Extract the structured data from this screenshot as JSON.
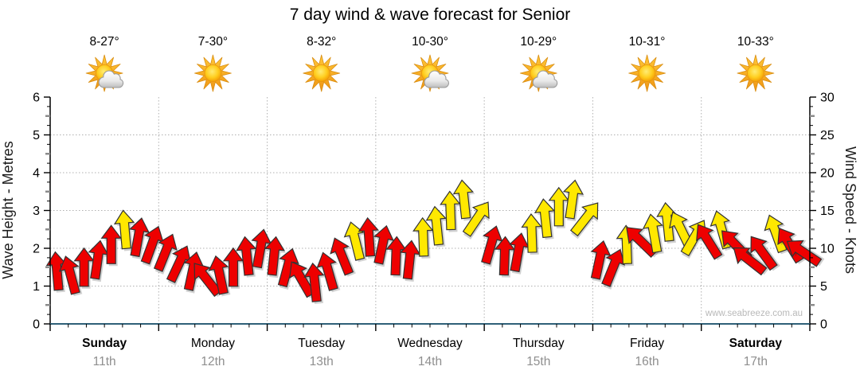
{
  "title": "7 day wind & wave forecast for Senior",
  "watermark": "www.seabreeze.com.au",
  "colors": {
    "arrow_red": "#ee0000",
    "arrow_yellow": "#ffe800",
    "arrow_outline": "#333333",
    "grid": "#b0b0b0",
    "y_axis": "#000000",
    "x_axis": "#2f6078",
    "half_tick": "#8c8c8c",
    "date_text": "#8f8f8f",
    "watermark_text": "#b9b9b9",
    "sun_core": "#ffce1f",
    "sun_rim": "#f29500",
    "ray": "#f6a31c",
    "cloud_light": "#ffffff",
    "cloud_dark": "#bdbdbd"
  },
  "y_left": {
    "label": "Wave Height - Metres",
    "min": 0,
    "max": 6,
    "major_step": 1,
    "ticks": [
      0,
      1,
      2,
      3,
      4,
      5,
      6
    ]
  },
  "y_right": {
    "label": "Wind Speed - Knots",
    "min": 0,
    "max": 30,
    "major_step": 5,
    "ticks": [
      0,
      5,
      10,
      15,
      20,
      25,
      30
    ]
  },
  "chart_data": {
    "type": "scatter",
    "subtype": "wind-arrow-forecast",
    "x_axis": "days (8 arrow samples per day)",
    "y_axis_left": "Wave Height - Metres (0-6)",
    "y_axis_right": "Wind Speed - Knots (0-30)",
    "grid": "dotted, horizontal every 5 knots / 1 metre, vertical at day boundaries",
    "legend": "arrow y-position = wind speed in knots, arrow rotation = wind direction, red = lighter wind, yellow = stronger wind",
    "days": [
      {
        "day": "Sunday",
        "date": "11th",
        "weekend": true,
        "temp": "8-27°",
        "icon": "sun-cloud",
        "wind": [
          {
            "kt": 7,
            "deg": -5,
            "band": "red"
          },
          {
            "kt": 6.5,
            "deg": -15,
            "band": "red"
          },
          {
            "kt": 7.5,
            "deg": 0,
            "band": "red"
          },
          {
            "kt": 8.5,
            "deg": 8,
            "band": "red"
          },
          {
            "kt": 10.5,
            "deg": 0,
            "band": "red"
          },
          {
            "kt": 12.5,
            "deg": -5,
            "band": "yellow"
          },
          {
            "kt": 11.5,
            "deg": 10,
            "band": "red"
          },
          {
            "kt": 10.5,
            "deg": 20,
            "band": "red"
          }
        ]
      },
      {
        "day": "Monday",
        "date": "12th",
        "weekend": false,
        "temp": "7-30°",
        "icon": "sun",
        "wind": [
          {
            "kt": 9.5,
            "deg": 22,
            "band": "red"
          },
          {
            "kt": 8,
            "deg": 25,
            "band": "red"
          },
          {
            "kt": 7,
            "deg": 12,
            "band": "red"
          },
          {
            "kt": 6,
            "deg": -38,
            "band": "red"
          },
          {
            "kt": 6.5,
            "deg": -12,
            "band": "red"
          },
          {
            "kt": 7.5,
            "deg": 0,
            "band": "red"
          },
          {
            "kt": 9,
            "deg": -6,
            "band": "red"
          },
          {
            "kt": 10,
            "deg": 10,
            "band": "red"
          }
        ]
      },
      {
        "day": "Tuesday",
        "date": "13th",
        "weekend": false,
        "temp": "8-32°",
        "icon": "sun",
        "wind": [
          {
            "kt": 9,
            "deg": 6,
            "band": "red"
          },
          {
            "kt": 7.5,
            "deg": 15,
            "band": "red"
          },
          {
            "kt": 6,
            "deg": -30,
            "band": "red"
          },
          {
            "kt": 5.5,
            "deg": -6,
            "band": "red"
          },
          {
            "kt": 7,
            "deg": -16,
            "band": "red"
          },
          {
            "kt": 9,
            "deg": -22,
            "band": "red"
          },
          {
            "kt": 11,
            "deg": -14,
            "band": "yellow"
          },
          {
            "kt": 11.5,
            "deg": -4,
            "band": "red"
          }
        ]
      },
      {
        "day": "Wednesday",
        "date": "14th",
        "weekend": false,
        "temp": "10-30°",
        "icon": "sun-cloud",
        "wind": [
          {
            "kt": 10.5,
            "deg": 12,
            "band": "red"
          },
          {
            "kt": 9,
            "deg": 2,
            "band": "red"
          },
          {
            "kt": 8.5,
            "deg": 6,
            "band": "red"
          },
          {
            "kt": 11.5,
            "deg": -2,
            "band": "yellow"
          },
          {
            "kt": 13,
            "deg": -6,
            "band": "yellow"
          },
          {
            "kt": 15,
            "deg": -2,
            "band": "yellow"
          },
          {
            "kt": 16.5,
            "deg": -6,
            "band": "yellow"
          },
          {
            "kt": 14,
            "deg": 34,
            "band": "yellow"
          }
        ]
      },
      {
        "day": "Thursday",
        "date": "15th",
        "weekend": false,
        "temp": "10-29°",
        "icon": "sun-cloud",
        "wind": [
          {
            "kt": 10.5,
            "deg": 16,
            "band": "red"
          },
          {
            "kt": 9,
            "deg": 2,
            "band": "red"
          },
          {
            "kt": 9.5,
            "deg": 10,
            "band": "red"
          },
          {
            "kt": 12,
            "deg": -2,
            "band": "yellow"
          },
          {
            "kt": 14,
            "deg": -6,
            "band": "yellow"
          },
          {
            "kt": 15.5,
            "deg": 0,
            "band": "yellow"
          },
          {
            "kt": 16.5,
            "deg": 8,
            "band": "yellow"
          },
          {
            "kt": 14,
            "deg": 38,
            "band": "yellow"
          }
        ]
      },
      {
        "day": "Friday",
        "date": "16th",
        "weekend": false,
        "temp": "10-31°",
        "icon": "sun",
        "wind": [
          {
            "kt": 8.5,
            "deg": 12,
            "band": "red"
          },
          {
            "kt": 7.5,
            "deg": 22,
            "band": "red"
          },
          {
            "kt": 10.5,
            "deg": -2,
            "band": "yellow"
          },
          {
            "kt": 11,
            "deg": -46,
            "band": "red"
          },
          {
            "kt": 12,
            "deg": -10,
            "band": "yellow"
          },
          {
            "kt": 13.5,
            "deg": -6,
            "band": "yellow"
          },
          {
            "kt": 12.5,
            "deg": -26,
            "band": "yellow"
          },
          {
            "kt": 11.5,
            "deg": 30,
            "band": "yellow"
          }
        ]
      },
      {
        "day": "Saturday",
        "date": "17th",
        "weekend": true,
        "temp": "10-33°",
        "icon": "sun",
        "wind": [
          {
            "kt": 11,
            "deg": -32,
            "band": "red"
          },
          {
            "kt": 12.5,
            "deg": -16,
            "band": "yellow"
          },
          {
            "kt": 10.5,
            "deg": -44,
            "band": "red"
          },
          {
            "kt": 8.5,
            "deg": -52,
            "band": "red"
          },
          {
            "kt": 9.5,
            "deg": -36,
            "band": "red"
          },
          {
            "kt": 12,
            "deg": -20,
            "band": "yellow"
          },
          {
            "kt": 10.5,
            "deg": -32,
            "band": "red"
          },
          {
            "kt": 9.5,
            "deg": -56,
            "band": "red"
          }
        ]
      }
    ]
  }
}
